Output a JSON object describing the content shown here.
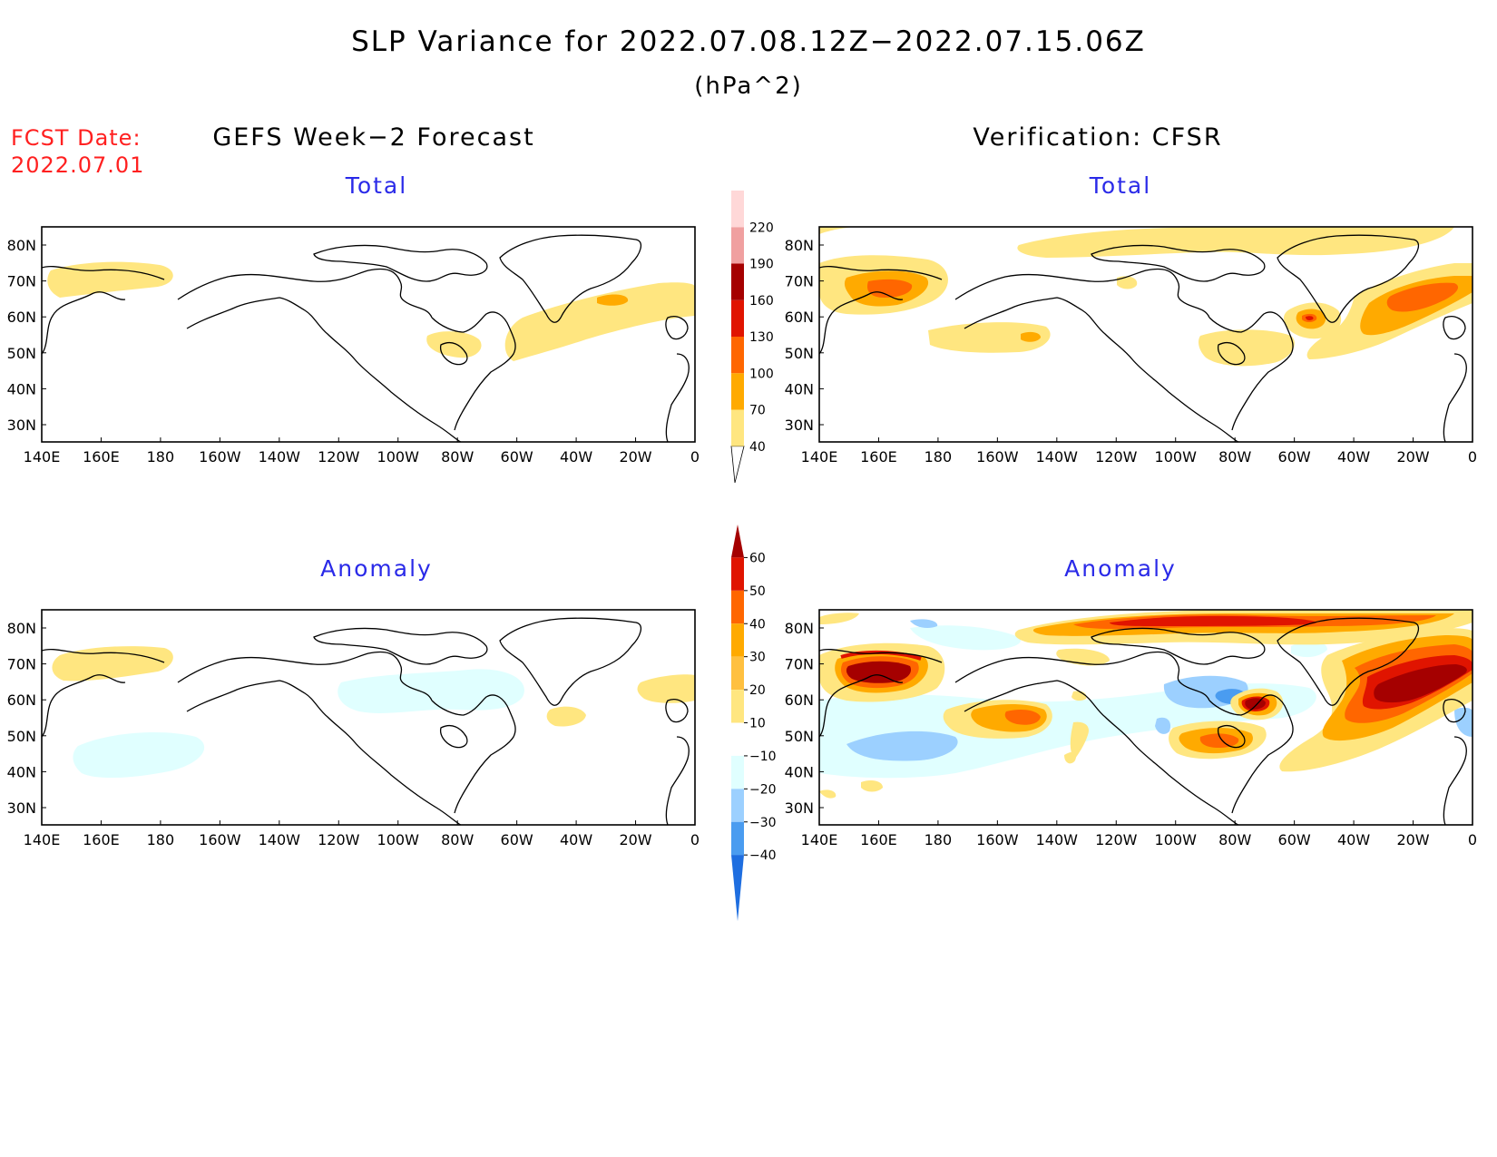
{
  "title": "SLP Variance for 2022.07.08.12Z−2022.07.15.06Z",
  "units": "(hPa^2)",
  "fcst": {
    "label": "FCST Date:",
    "date": "2022.07.01"
  },
  "columns": {
    "left": "GEFS Week−2 Forecast",
    "right": "Verification: CFSR"
  },
  "panels": {
    "total_title": "Total",
    "anomaly_title": "Anomaly"
  },
  "axes": {
    "lon_labels": [
      "140E",
      "160E",
      "180",
      "160W",
      "140W",
      "120W",
      "100W",
      "80W",
      "60W",
      "40W",
      "20W",
      "0"
    ],
    "lat_labels": [
      "80N",
      "70N",
      "60N",
      "50N",
      "40N",
      "30N"
    ]
  },
  "colorbars": {
    "total": {
      "levels": [
        "40",
        "70",
        "100",
        "130",
        "160",
        "190",
        "220"
      ],
      "colors": [
        "#ffe680",
        "#ffaa00",
        "#ff6600",
        "#e01400",
        "#a50000",
        "#f0a0a0",
        "#ffd8d8"
      ]
    },
    "anomaly": {
      "levels": [
        "60",
        "50",
        "40",
        "30",
        "20",
        "10",
        "−10",
        "−20",
        "−30",
        "−40"
      ],
      "colors": [
        "#a50000",
        "#e01400",
        "#ff6600",
        "#ffaa00",
        "#ffc040",
        "#ffe680",
        "#ffffff",
        "#e0ffff",
        "#9cd0ff",
        "#4a9cf0",
        "#1e6ee0"
      ]
    }
  }
}
